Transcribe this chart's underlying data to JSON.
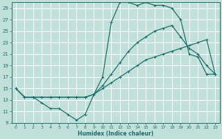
{
  "xlabel": "Humidex (Indice chaleur)",
  "bg_color": "#c2e0da",
  "grid_color": "#ffffff",
  "line_color": "#1a6e6a",
  "xlim": [
    -0.5,
    23.5
  ],
  "ylim": [
    9,
    30
  ],
  "xticks": [
    0,
    1,
    2,
    3,
    4,
    5,
    6,
    7,
    8,
    9,
    10,
    11,
    12,
    13,
    14,
    15,
    16,
    17,
    18,
    19,
    20,
    21,
    22,
    23
  ],
  "yticks": [
    9,
    11,
    13,
    15,
    17,
    19,
    21,
    23,
    25,
    27,
    29
  ],
  "line1_x": [
    0,
    1,
    2,
    3,
    4,
    5,
    6,
    7,
    8,
    9,
    10,
    11,
    12,
    13,
    14,
    15,
    16,
    17,
    18,
    19,
    20,
    21,
    22,
    23
  ],
  "line1_y": [
    15,
    13.5,
    13.5,
    12.5,
    11.5,
    11.5,
    10.5,
    9.5,
    10.5,
    14,
    17,
    26.5,
    30,
    30,
    29.5,
    30,
    29.5,
    29.5,
    29,
    27,
    21,
    20.5,
    17.5,
    17.5
  ],
  "line2_x": [
    0,
    1,
    2,
    3,
    4,
    5,
    6,
    7,
    8,
    9,
    10,
    11,
    12,
    13,
    14,
    15,
    16,
    17,
    18,
    19,
    20,
    21,
    22,
    23
  ],
  "line2_y": [
    15,
    13.5,
    13.5,
    13.5,
    13.5,
    13.5,
    13.5,
    13.5,
    13.5,
    14,
    15.5,
    17.5,
    19.5,
    21.5,
    23,
    24,
    25,
    25.5,
    26,
    24,
    22,
    21,
    19,
    17.5
  ],
  "line3_x": [
    0,
    1,
    2,
    3,
    4,
    5,
    6,
    7,
    8,
    9,
    10,
    11,
    12,
    13,
    14,
    15,
    16,
    17,
    18,
    19,
    20,
    21,
    22,
    23
  ],
  "line3_y": [
    15,
    13.5,
    13.5,
    13.5,
    13.5,
    13.5,
    13.5,
    13.5,
    13.5,
    14,
    15,
    16,
    17,
    18,
    19,
    20,
    20.5,
    21,
    21.5,
    22,
    22.5,
    23,
    23.5,
    17.5
  ]
}
